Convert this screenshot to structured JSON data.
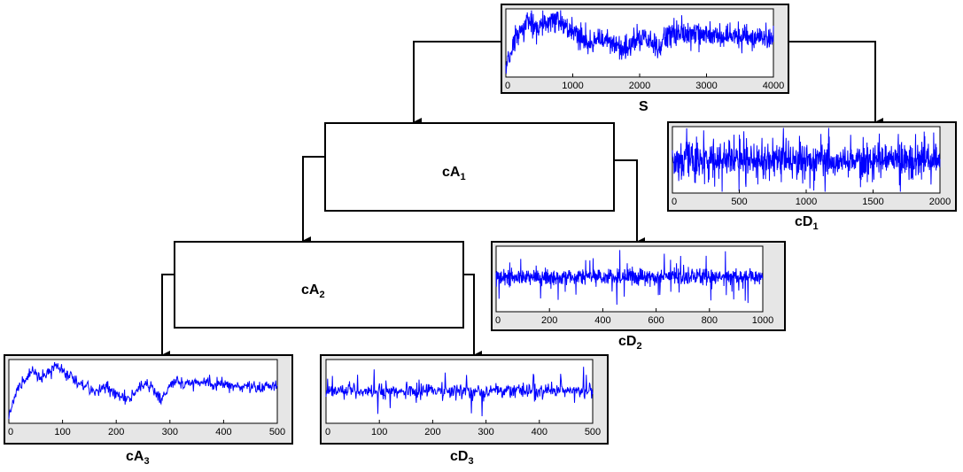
{
  "diagram": {
    "nodes": {
      "S": {
        "label": "S"
      },
      "cA1": {
        "label": "cA",
        "sub": "1"
      },
      "cA2": {
        "label": "cA",
        "sub": "2"
      },
      "cA3": {
        "label": "cA",
        "sub": "3"
      },
      "cD1": {
        "label": "cD",
        "sub": "1"
      },
      "cD2": {
        "label": "cD",
        "sub": "2"
      },
      "cD3": {
        "label": "cD",
        "sub": "3"
      }
    },
    "colors": {
      "signal": "#0000ff",
      "frame": "#000000",
      "panel": "#e6e6e6",
      "axes": "#ffffff"
    }
  },
  "chart_data": [
    {
      "id": "S",
      "type": "line",
      "title": "S",
      "xlim": [
        0,
        4000
      ],
      "ticks": [
        0,
        1000,
        2000,
        3000,
        4000
      ],
      "samples": 4000,
      "style": "approx"
    },
    {
      "id": "cD1",
      "type": "line",
      "title": "cD1",
      "xlim": [
        0,
        2000
      ],
      "ticks": [
        0,
        500,
        1000,
        1500,
        2000
      ],
      "samples": 2000,
      "style": "detail1"
    },
    {
      "id": "cD2",
      "type": "line",
      "title": "cD2",
      "xlim": [
        0,
        1000
      ],
      "ticks": [
        0,
        200,
        400,
        600,
        800,
        1000
      ],
      "samples": 1000,
      "style": "detail2"
    },
    {
      "id": "cA3",
      "type": "line",
      "title": "cA3",
      "xlim": [
        0,
        500
      ],
      "ticks": [
        0,
        100,
        200,
        300,
        400,
        500
      ],
      "samples": 500,
      "style": "approx"
    },
    {
      "id": "cD3",
      "type": "line",
      "title": "cD3",
      "xlim": [
        0,
        500
      ],
      "ticks": [
        0,
        100,
        200,
        300,
        400,
        500
      ],
      "samples": 500,
      "style": "detail3"
    }
  ]
}
